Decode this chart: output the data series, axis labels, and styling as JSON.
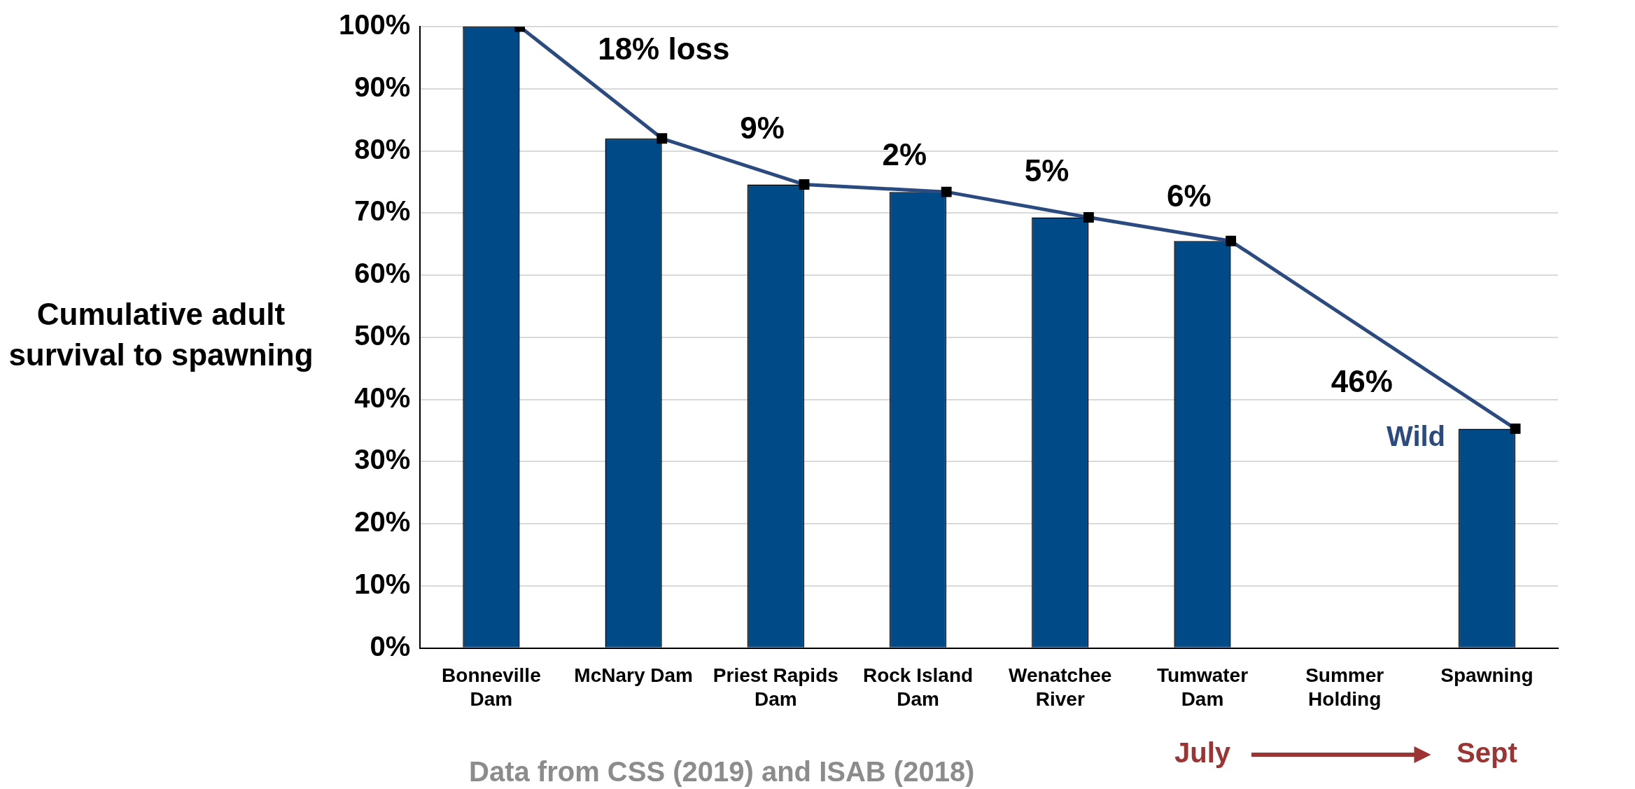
{
  "chart_data": {
    "type": "bar",
    "ylabel": "Cumulative adult survival to spawning",
    "categories": [
      "Bonneville Dam",
      "McNary Dam",
      "Priest Rapids Dam",
      "Rock Island Dam",
      "Wenatchee River",
      "Tumwater Dam",
      "Summer Holding",
      "Spawning"
    ],
    "series": [
      {
        "color": "#004a87",
        "values": [
          100,
          82,
          74.6,
          73.4,
          69.3,
          65.5,
          null,
          35.3
        ]
      },
      {
        "type": "line",
        "name": "Wild",
        "color": "#2a4a80",
        "values": [
          100,
          82,
          74.6,
          73.4,
          69.3,
          65.5,
          null,
          35.3
        ]
      }
    ],
    "ylim": [
      0,
      100
    ],
    "yticks": [
      {
        "value": 0,
        "label": "0%"
      },
      {
        "value": 10,
        "label": "10%"
      },
      {
        "value": 20,
        "label": "20%"
      },
      {
        "value": 30,
        "label": "30%"
      },
      {
        "value": 40,
        "label": "40%"
      },
      {
        "value": 50,
        "label": "50%"
      },
      {
        "value": 60,
        "label": "60%"
      },
      {
        "value": 70,
        "label": "70%"
      },
      {
        "value": 80,
        "label": "80%"
      },
      {
        "value": 90,
        "label": "90%"
      },
      {
        "value": 100,
        "label": "100%"
      }
    ],
    "grid": "y",
    "legend": false,
    "marker": "square",
    "line_style": "solid",
    "annotations": [
      "18% loss",
      "9%",
      "2%",
      "5%",
      "6%",
      "46%",
      "July",
      "Sept",
      "Data from CSS (2019) and ISAB (2018)"
    ]
  }
}
